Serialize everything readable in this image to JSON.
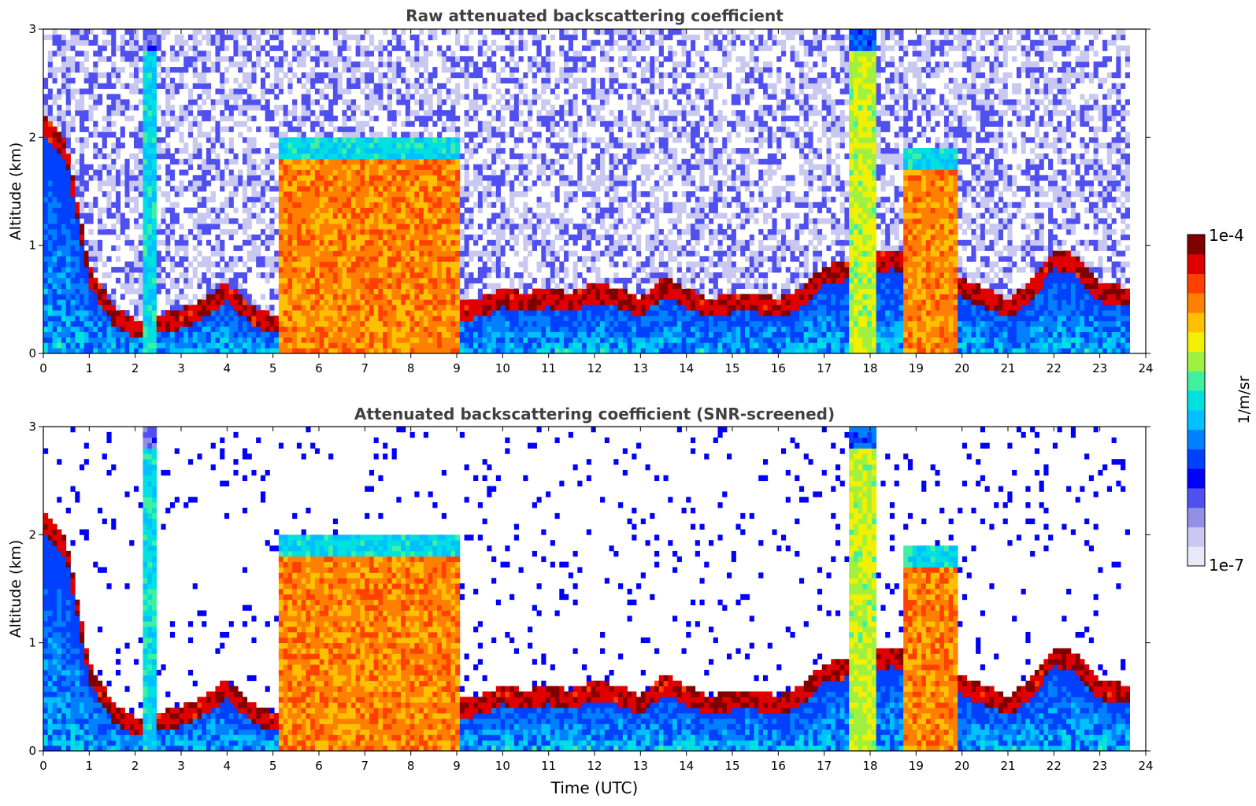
{
  "chart_data": [
    {
      "type": "heatmap",
      "title": "Raw attenuated backscattering coefficient",
      "ylabel": "Altitude (km)",
      "xlabel": "",
      "xlim": [
        0,
        24
      ],
      "ylim": [
        0,
        3
      ],
      "xticks": [
        "0",
        "1",
        "2",
        "3",
        "4",
        "5",
        "6",
        "7",
        "8",
        "9",
        "10",
        "11",
        "12",
        "13",
        "14",
        "15",
        "16",
        "17",
        "18",
        "19",
        "20",
        "21",
        "22",
        "23",
        "24"
      ],
      "yticks": [
        "0",
        "1",
        "2",
        "3"
      ],
      "data_end_hour": 23.65,
      "grid": false,
      "features": [
        {
          "kind": "cloud",
          "start": 5.15,
          "end": 9.05,
          "top_km": 2.0,
          "level": 0.85
        },
        {
          "kind": "cloud",
          "start": 18.75,
          "end": 19.95,
          "top_km": 1.9,
          "level": 0.85
        },
        {
          "kind": "cloud",
          "start": 17.55,
          "end": 18.15,
          "top_km": 3.0,
          "level": 0.7
        },
        {
          "kind": "cloud",
          "start": 2.2,
          "end": 2.45,
          "top_km": 3.0,
          "level": 0.55
        },
        {
          "kind": "layer_top_km",
          "hours": [
            0,
            0.5,
            1,
            1.5,
            2,
            2.5,
            3,
            3.5,
            4,
            4.5,
            5,
            9.5,
            10,
            10.5,
            11,
            11.5,
            12,
            12.5,
            13,
            13.5,
            14,
            14.5,
            15,
            15.5,
            16,
            16.5,
            17,
            18.5,
            20.5,
            21,
            21.5,
            22,
            22.5,
            23,
            23.6
          ],
          "values": [
            2.15,
            1.9,
            0.75,
            0.4,
            0.25,
            0.3,
            0.35,
            0.45,
            0.6,
            0.4,
            0.3,
            0.45,
            0.55,
            0.5,
            0.55,
            0.5,
            0.6,
            0.55,
            0.45,
            0.65,
            0.55,
            0.45,
            0.5,
            0.5,
            0.45,
            0.55,
            0.75,
            0.9,
            0.55,
            0.45,
            0.6,
            0.9,
            0.85,
            0.6,
            0.55
          ]
        }
      ]
    },
    {
      "type": "heatmap",
      "title": "Attenuated backscattering coefficient (SNR-screened)",
      "ylabel": "Altitude (km)",
      "xlabel": "Time (UTC)",
      "xlim": [
        0,
        24
      ],
      "ylim": [
        0,
        3
      ],
      "xticks": [
        "0",
        "1",
        "2",
        "3",
        "4",
        "5",
        "6",
        "7",
        "8",
        "9",
        "10",
        "11",
        "12",
        "13",
        "14",
        "15",
        "16",
        "17",
        "18",
        "19",
        "20",
        "21",
        "22",
        "23",
        "24"
      ],
      "yticks": [
        "0",
        "1",
        "2",
        "3"
      ],
      "data_end_hour": 23.65,
      "grid": false
    }
  ],
  "colorbar": {
    "label": "1/m/sr",
    "max_label": "1e-4",
    "min_label": "1e-7",
    "colors": [
      "#e8e8f8",
      "#c8c8f0",
      "#9090e8",
      "#5050f0",
      "#0000ff",
      "#0040ff",
      "#0080ff",
      "#00c0ff",
      "#00e0e0",
      "#40f0a0",
      "#a0f040",
      "#f0f000",
      "#ffc000",
      "#ff8000",
      "#ff4000",
      "#e00000",
      "#800000"
    ]
  }
}
